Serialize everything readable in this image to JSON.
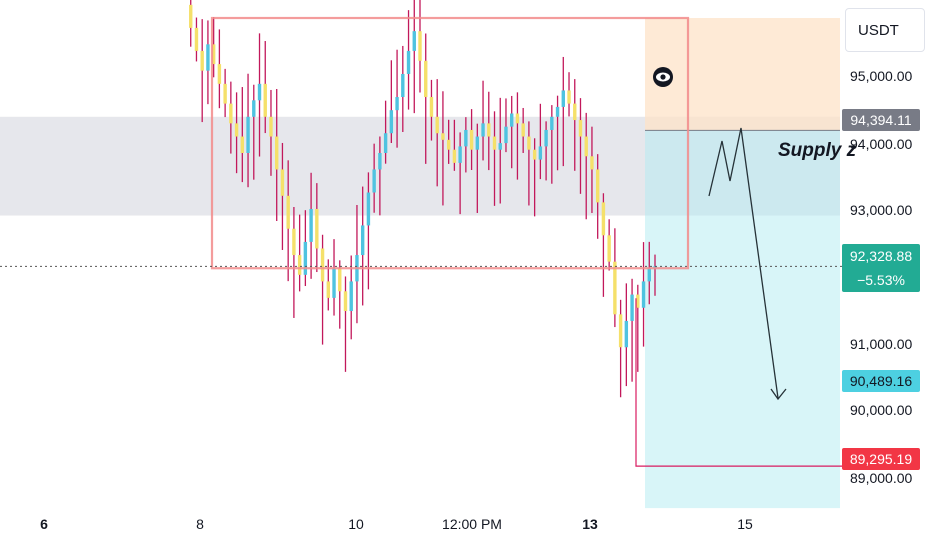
{
  "currency": "USDT",
  "annotation": {
    "supply_label": "Supply z"
  },
  "tags": {
    "top_pos": "94,394.11",
    "last_price": "92,328.88",
    "last_change": "−5.53%",
    "target": "90,489.16",
    "stop": "89,295.19"
  },
  "colors": {
    "up": "#4fc3e0",
    "down": "#f5e06a",
    "wick": "#c2185b",
    "range_box": "#f28b8b",
    "supply_zone": "#d1d4dc",
    "profit_zone": "#b2ebf2",
    "loss_zone": "#fde3c8",
    "last_tag": "#22ab94",
    "target_tag": "#4dd0e1",
    "stop_tag": "#f23645",
    "top_tag": "#787b86"
  },
  "icons": {
    "visibility": "eye-icon"
  },
  "chart_data": {
    "type": "candlestick",
    "y_ticks": [
      "95,000.00",
      "94,000.00",
      "93,000.00",
      "91,000.00",
      "90,000.00",
      "89,000.00"
    ],
    "x_ticks": [
      {
        "label": "6",
        "bold": true
      },
      {
        "label": "8",
        "bold": false
      },
      {
        "label": "10",
        "bold": false
      },
      {
        "label": "12:00 PM",
        "bold": false
      },
      {
        "label": "13",
        "bold": true
      },
      {
        "label": "15",
        "bold": false
      }
    ],
    "ylim": [
      88750,
      96100
    ],
    "range_box": {
      "high": 96100,
      "low": 92300
    },
    "supply_zone": {
      "high": 94600,
      "low": 93100
    },
    "position": {
      "entry": 94394.11,
      "target": 89295.19,
      "stop": 96100
    },
    "levels": {
      "last": 92328.88,
      "target": 90489.16,
      "stop": 89295.19
    },
    "closes": [
      96300,
      95950,
      95600,
      95300,
      95700,
      95400,
      95100,
      94800,
      94500,
      94300,
      94050,
      94600,
      94850,
      95100,
      94600,
      94300,
      93800,
      93400,
      92900,
      92500,
      92200,
      92700,
      93200,
      92600,
      92100,
      91850,
      92300,
      91950,
      91650,
      92100,
      92500,
      92950,
      93450,
      93800,
      94050,
      94350,
      94700,
      94900,
      95250,
      95600,
      95900,
      95450,
      94900,
      94600,
      94350,
      94250,
      94100,
      93900,
      94150,
      94400,
      94100,
      94300,
      94500,
      94300,
      94100,
      94200,
      94450,
      94650,
      94500,
      94300,
      94100,
      93950,
      94150,
      94400,
      94600,
      94750,
      95000,
      94800,
      94550,
      94300,
      94000,
      93800,
      93300,
      92800,
      92400,
      91600,
      91100,
      91500,
      91900,
      91700,
      92100,
      92300,
      92328.88
    ]
  }
}
